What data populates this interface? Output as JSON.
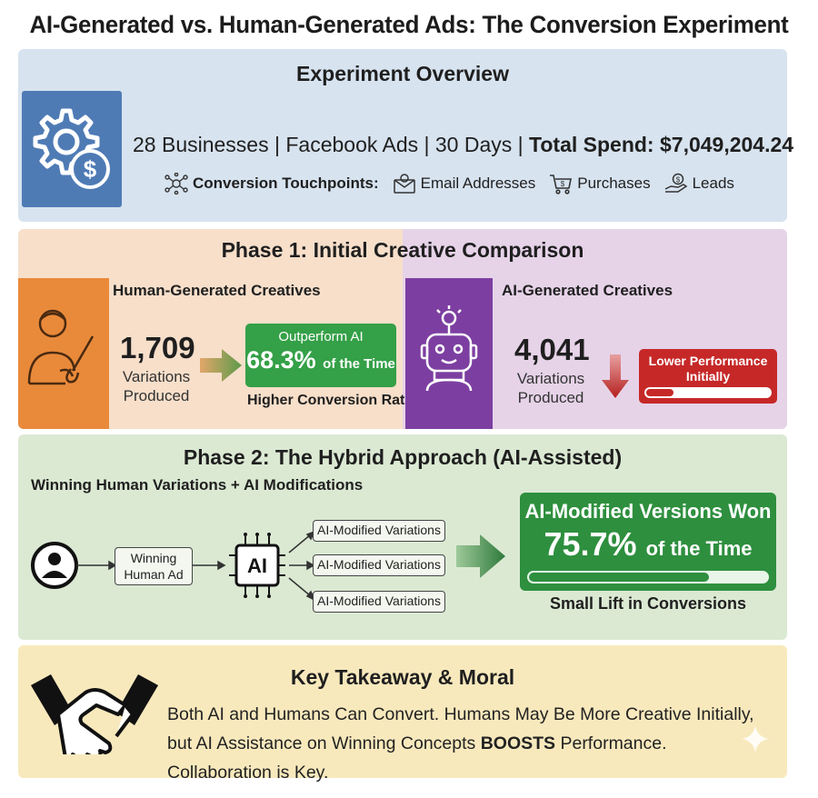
{
  "title": "AI-Generated vs. Human-Generated Ads: The Conversion Experiment",
  "overview": {
    "heading": "Experiment Overview",
    "businesses": "28 Businesses",
    "platform": "Facebook Ads",
    "duration": "30 Days",
    "spend_label": "Total Spend: $7,049,204.24",
    "separator": "|",
    "touchpoints_label": "Conversion Touchpoints:",
    "touchpoints": [
      "Email Addresses",
      "Purchases",
      "Leads"
    ],
    "icons": [
      "gear-dollar-icon",
      "network-icon",
      "envelope-icon",
      "cart-icon",
      "hand-coin-icon"
    ]
  },
  "phase1": {
    "heading": "Phase 1: Initial Creative Comparison",
    "human": {
      "heading": "Human-Generated Creatives",
      "count": "1,709",
      "count_label_line1": "Variations",
      "count_label_line2": "Produced",
      "badge_line1": "Outperform AI",
      "badge_percent": "68.3%",
      "badge_suffix": "of the Time",
      "caption": "Higher Conversion Rate",
      "icon": "artist-icon"
    },
    "ai": {
      "heading": "AI-Generated Creatives",
      "count": "4,041",
      "count_label_line1": "Variations",
      "count_label_line2": "Produced",
      "badge_line1": "Lower Performance",
      "badge_line2": "Initially",
      "badge_fill_fraction": 0.22,
      "icon": "robot-icon"
    }
  },
  "phase2": {
    "heading": "Phase 2: The Hybrid Approach (AI-Assisted)",
    "subheading": "Winning Human Variations + AI Modifications",
    "winning_line1": "Winning",
    "winning_line2": "Human Ad",
    "ai_chip": "AI",
    "variations": [
      "AI-Modified Variations",
      "AI-Modified Variations",
      "AI-Modified Variations"
    ],
    "result_line1": "AI-Modified Versions Won",
    "result_percent": "75.7%",
    "result_suffix": "of the Time",
    "result_fill_fraction": 0.757,
    "caption": "Small Lift in Conversions"
  },
  "takeaway": {
    "heading": "Key Takeaway & Moral",
    "text_before": "Both AI and Humans Can Convert. Humans May Be More Creative Initially, but AI Assistance on Winning Concepts ",
    "text_bold": "BOOSTS",
    "text_after": " Performance. Collaboration is Key.",
    "icon": "handshake-icon"
  },
  "colors": {
    "overview_bg": "#d7e3ef",
    "human_bg": "#f7dfca",
    "ai_bg": "#e6d3e8",
    "phase2_bg": "#dbe9d3",
    "takeaway_bg": "#f8e9bd",
    "green": "#34a047",
    "red": "#c62828",
    "orange": "#e98a3b",
    "purple": "#7c3fa1",
    "blue": "#4f7bb5"
  }
}
